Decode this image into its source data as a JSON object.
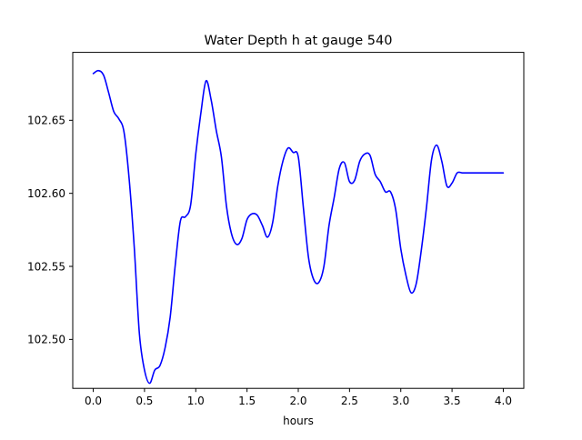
{
  "chart_data": {
    "type": "line",
    "title": "Water Depth h at gauge 540",
    "xlabel": "hours",
    "ylabel": "",
    "xlim": [
      -0.2,
      4.2
    ],
    "ylim": [
      102.4665,
      102.6965
    ],
    "xticks": [
      0.0,
      0.5,
      1.0,
      1.5,
      2.0,
      2.5,
      3.0,
      3.5,
      4.0
    ],
    "xtick_labels": [
      "0.0",
      "0.5",
      "1.0",
      "1.5",
      "2.0",
      "2.5",
      "3.0",
      "3.5",
      "4.0"
    ],
    "yticks": [
      102.5,
      102.55,
      102.6,
      102.65
    ],
    "ytick_labels": [
      "102.50",
      "102.55",
      "102.60",
      "102.65"
    ],
    "grid": false,
    "series": [
      {
        "color": "#0000ff",
        "x": [
          0.0,
          0.05,
          0.1,
          0.15,
          0.2,
          0.25,
          0.3,
          0.35,
          0.4,
          0.45,
          0.5,
          0.55,
          0.6,
          0.65,
          0.7,
          0.75,
          0.8,
          0.85,
          0.9,
          0.95,
          1.0,
          1.05,
          1.1,
          1.15,
          1.2,
          1.25,
          1.3,
          1.35,
          1.4,
          1.45,
          1.5,
          1.55,
          1.6,
          1.65,
          1.7,
          1.75,
          1.8,
          1.85,
          1.9,
          1.95,
          2.0,
          2.05,
          2.1,
          2.15,
          2.2,
          2.25,
          2.3,
          2.35,
          2.4,
          2.45,
          2.5,
          2.55,
          2.6,
          2.65,
          2.7,
          2.75,
          2.8,
          2.85,
          2.9,
          2.95,
          3.0,
          3.05,
          3.1,
          3.15,
          3.2,
          3.25,
          3.3,
          3.35,
          3.4,
          3.45,
          3.5,
          3.55,
          3.6,
          3.65,
          3.7,
          3.75,
          3.8,
          3.85,
          3.9,
          3.95,
          4.0
        ],
        "y": [
          102.682,
          102.684,
          102.681,
          102.669,
          102.656,
          102.651,
          102.642,
          102.61,
          102.563,
          102.504,
          102.479,
          102.47,
          102.479,
          102.482,
          102.494,
          102.515,
          102.551,
          102.581,
          102.584,
          102.592,
          102.627,
          102.655,
          102.677,
          102.664,
          102.643,
          102.625,
          102.591,
          102.572,
          102.565,
          102.569,
          102.582,
          102.586,
          102.585,
          102.578,
          102.57,
          102.58,
          102.605,
          102.622,
          102.631,
          102.628,
          102.625,
          102.59,
          102.556,
          102.541,
          102.539,
          102.55,
          102.578,
          102.597,
          102.617,
          102.621,
          102.608,
          102.609,
          102.622,
          102.627,
          102.626,
          102.613,
          102.608,
          102.601,
          102.601,
          102.589,
          102.562,
          102.544,
          102.532,
          102.538,
          102.561,
          102.59,
          102.623,
          102.633,
          102.622,
          102.605,
          102.607,
          102.614,
          102.614,
          102.614,
          102.614,
          102.614,
          102.614,
          102.614,
          102.614,
          102.614,
          102.614
        ]
      }
    ]
  }
}
